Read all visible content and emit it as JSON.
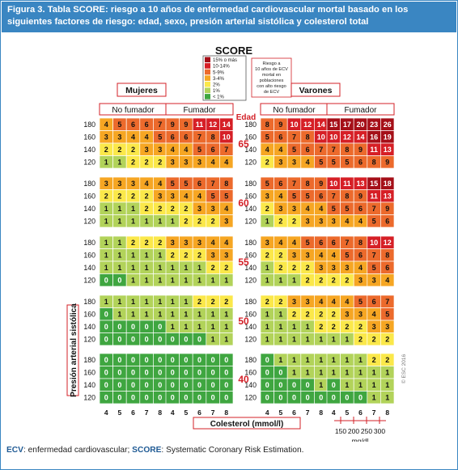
{
  "figure": {
    "caption": "Figura 3. Tabla SCORE: riesgo a 10 años de enfermedad cardiovascular mortal basado en los siguientes factores de riesgo: edad, sexo, presión arterial sistólica y colesterol total",
    "footnote": {
      "ecv_abbr": "ECV",
      "ecv_text": ": enfermedad cardiovascular; ",
      "score_abbr": "SCORE",
      "score_text": ": Systematic Coronary Risk Estimation."
    },
    "copyright": "© ESC 2016"
  },
  "chart_data": {
    "type": "heatmap",
    "logo": "SCORE",
    "legend": {
      "entries": [
        {
          "label": "15% o más",
          "color": "#a50f18"
        },
        {
          "label": "10-14%",
          "color": "#d61f26"
        },
        {
          "label": "5-9%",
          "color": "#ec6a2c"
        },
        {
          "label": "3-4%",
          "color": "#f6a623"
        },
        {
          "label": "2%",
          "color": "#fbe84a"
        },
        {
          "label": "1%",
          "color": "#b2d35a"
        },
        {
          "label": "< 1%",
          "color": "#3fa640"
        }
      ],
      "note": "Riesgo a 10 años de ECV mortal en poblaciones con alto riesgo de ECV"
    },
    "sex_labels": [
      "Mujeres",
      "Varones"
    ],
    "smoking_labels": [
      "No fumador",
      "Fumador",
      "No fumador",
      "Fumador"
    ],
    "age_header": "Edad",
    "ylabel": "Presión arterial sistólica",
    "xlabel": "Colesterol (mmol/l)",
    "sbp_levels": [
      "180",
      "160",
      "140",
      "120"
    ],
    "cholesterol_levels": [
      "4",
      "5",
      "6",
      "7",
      "8"
    ],
    "mgdl_ticks": [
      "150",
      "200",
      "250",
      "300"
    ],
    "mgdl_unit": "mg/dl",
    "age_groups": [
      {
        "age": "65",
        "panels": [
          [
            [
              4,
              5,
              6,
              6,
              7
            ],
            [
              3,
              3,
              4,
              4,
              5
            ],
            [
              2,
              2,
              2,
              3,
              3
            ],
            [
              1,
              1,
              2,
              2,
              2
            ]
          ],
          [
            [
              9,
              9,
              11,
              12,
              14
            ],
            [
              6,
              6,
              7,
              8,
              10
            ],
            [
              4,
              4,
              5,
              6,
              7
            ],
            [
              3,
              3,
              3,
              4,
              4
            ]
          ],
          [
            [
              8,
              9,
              10,
              12,
              14
            ],
            [
              5,
              6,
              7,
              8,
              10
            ],
            [
              4,
              4,
              5,
              6,
              7
            ],
            [
              2,
              3,
              3,
              4,
              5
            ]
          ],
          [
            [
              15,
              17,
              20,
              23,
              26
            ],
            [
              10,
              12,
              14,
              16,
              19
            ],
            [
              7,
              8,
              9,
              11,
              13
            ],
            [
              5,
              5,
              6,
              8,
              9
            ]
          ]
        ]
      },
      {
        "age": "60",
        "panels": [
          [
            [
              3,
              3,
              3,
              4,
              4
            ],
            [
              2,
              2,
              2,
              2,
              3
            ],
            [
              1,
              1,
              1,
              2,
              2
            ],
            [
              1,
              1,
              1,
              1,
              1
            ]
          ],
          [
            [
              5,
              5,
              6,
              7,
              8
            ],
            [
              3,
              4,
              4,
              5,
              5
            ],
            [
              2,
              2,
              3,
              3,
              4
            ],
            [
              1,
              2,
              2,
              2,
              3
            ]
          ],
          [
            [
              5,
              6,
              7,
              8,
              9
            ],
            [
              3,
              4,
              5,
              5,
              6
            ],
            [
              2,
              3,
              3,
              4,
              4
            ],
            [
              1,
              2,
              2,
              3,
              3
            ]
          ],
          [
            [
              10,
              11,
              13,
              15,
              18
            ],
            [
              7,
              8,
              9,
              11,
              13
            ],
            [
              5,
              5,
              6,
              7,
              9
            ],
            [
              3,
              4,
              4,
              5,
              6
            ]
          ]
        ]
      },
      {
        "age": "55",
        "panels": [
          [
            [
              1,
              1,
              2,
              2,
              2
            ],
            [
              1,
              1,
              1,
              1,
              1
            ],
            [
              1,
              1,
              1,
              1,
              1
            ],
            [
              0,
              0,
              1,
              1,
              1
            ]
          ],
          [
            [
              3,
              3,
              3,
              4,
              4
            ],
            [
              2,
              2,
              2,
              3,
              3
            ],
            [
              1,
              1,
              1,
              2,
              2
            ],
            [
              1,
              1,
              1,
              1,
              1
            ]
          ],
          [
            [
              3,
              4,
              4,
              5,
              6
            ],
            [
              2,
              2,
              3,
              3,
              4
            ],
            [
              1,
              2,
              2,
              2,
              3
            ],
            [
              1,
              1,
              1,
              2,
              2
            ]
          ],
          [
            [
              6,
              7,
              8,
              10,
              12
            ],
            [
              4,
              5,
              6,
              7,
              8
            ],
            [
              3,
              3,
              4,
              5,
              6
            ],
            [
              2,
              2,
              3,
              3,
              4
            ]
          ]
        ]
      },
      {
        "age": "50",
        "panels": [
          [
            [
              1,
              1,
              1,
              1,
              1
            ],
            [
              0,
              1,
              1,
              1,
              1
            ],
            [
              0,
              0,
              0,
              0,
              0
            ],
            [
              0,
              0,
              0,
              0,
              0
            ]
          ],
          [
            [
              1,
              1,
              2,
              2,
              2
            ],
            [
              1,
              1,
              1,
              1,
              1
            ],
            [
              1,
              1,
              1,
              1,
              1
            ],
            [
              0,
              0,
              0,
              1,
              1
            ]
          ],
          [
            [
              2,
              2,
              3,
              3,
              4
            ],
            [
              1,
              1,
              2,
              2,
              2
            ],
            [
              1,
              1,
              1,
              1,
              2
            ],
            [
              1,
              1,
              1,
              1,
              1
            ]
          ],
          [
            [
              4,
              4,
              5,
              6,
              7
            ],
            [
              2,
              3,
              3,
              4,
              5
            ],
            [
              2,
              2,
              2,
              3,
              3
            ],
            [
              1,
              1,
              2,
              2,
              2
            ]
          ]
        ]
      },
      {
        "age": "40",
        "panels": [
          [
            [
              0,
              0,
              0,
              0,
              0
            ],
            [
              0,
              0,
              0,
              0,
              0
            ],
            [
              0,
              0,
              0,
              0,
              0
            ],
            [
              0,
              0,
              0,
              0,
              0
            ]
          ],
          [
            [
              0,
              0,
              0,
              0,
              0
            ],
            [
              0,
              0,
              0,
              0,
              0
            ],
            [
              0,
              0,
              0,
              0,
              0
            ],
            [
              0,
              0,
              0,
              0,
              0
            ]
          ],
          [
            [
              0,
              1,
              1,
              1,
              1
            ],
            [
              0,
              0,
              1,
              1,
              1
            ],
            [
              0,
              0,
              0,
              0,
              1
            ],
            [
              0,
              0,
              0,
              0,
              0
            ]
          ],
          [
            [
              1,
              1,
              1,
              2,
              2
            ],
            [
              1,
              1,
              1,
              1,
              1
            ],
            [
              0,
              1,
              1,
              1,
              1
            ],
            [
              0,
              0,
              0,
              1,
              1
            ]
          ]
        ]
      }
    ]
  }
}
